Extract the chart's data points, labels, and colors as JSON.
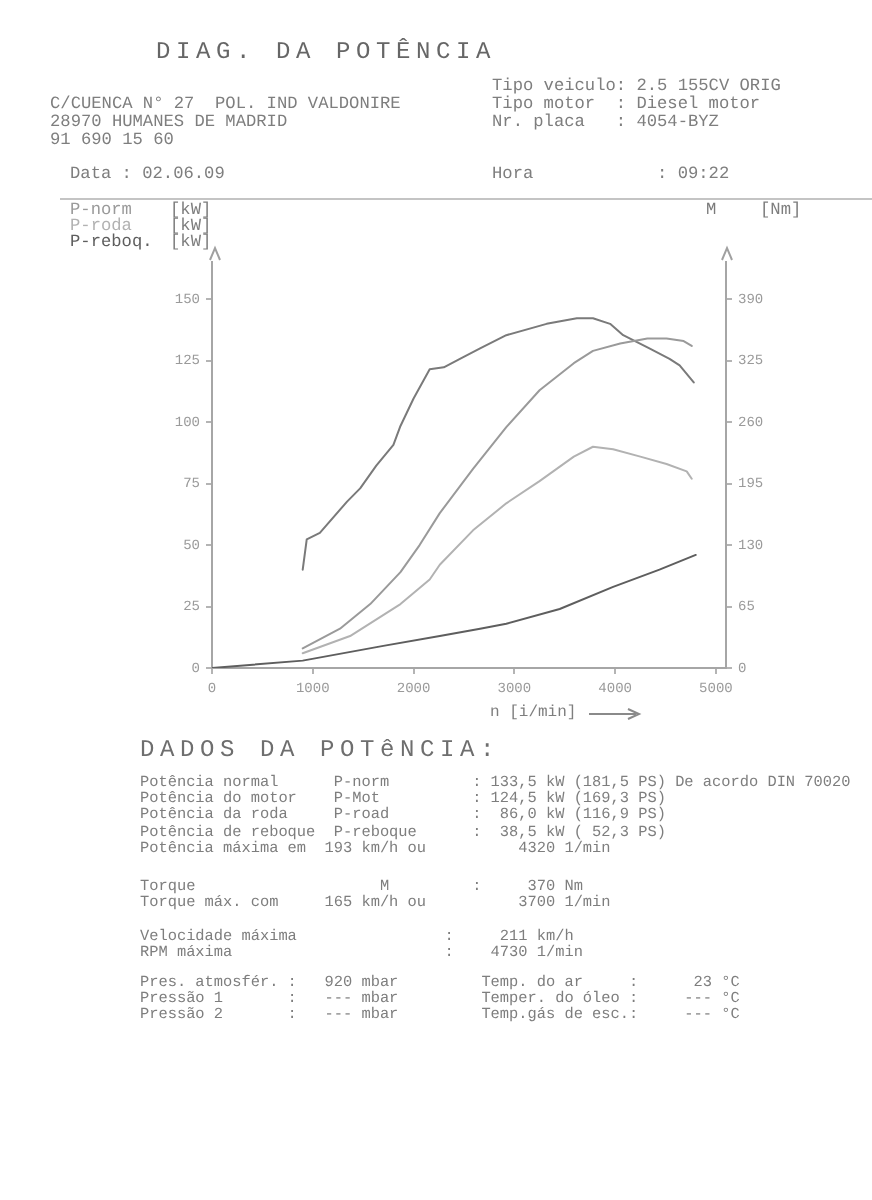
{
  "chart_data": {
    "type": "line",
    "title": "DIAG. DA POTÊNCIA",
    "xlabel": "n [i/min]",
    "ylabel": "[kW]",
    "y2label": "[Nm]",
    "series": [
      {
        "name": "P-norm",
        "color": "#9a9a9a",
        "x": [
          900,
          1270,
          1570,
          1870,
          2060,
          2260,
          2590,
          2920,
          3250,
          3590,
          3780,
          4050,
          4320,
          4510,
          4680,
          4760
        ],
        "values": [
          8,
          16,
          26,
          39,
          50,
          63,
          81,
          98,
          113,
          124,
          129,
          132,
          134,
          134,
          133,
          131
        ]
      },
      {
        "name": "P-roda",
        "color": "#b2b2b2",
        "x": [
          900,
          1370,
          1870,
          2160,
          2260,
          2590,
          2920,
          3250,
          3590,
          3780,
          3980,
          4250,
          4510,
          4710,
          4760
        ],
        "values": [
          6,
          13,
          26,
          36,
          42,
          56,
          67,
          76,
          86,
          90,
          89,
          86,
          83,
          80,
          77
        ]
      },
      {
        "name": "P-reboq.",
        "color": "#5e5e5e",
        "x": [
          0,
          900,
          1700,
          2260,
          2660,
          2920,
          3450,
          3980,
          4440,
          4800
        ],
        "values": [
          0,
          3,
          9,
          13,
          16,
          18,
          24,
          33,
          40,
          46
        ]
      },
      {
        "name": "M",
        "color": "#7a7a7a",
        "axis": "y2",
        "x": [
          900,
          940,
          1070,
          1340,
          1470,
          1630,
          1800,
          1870,
          2000,
          2160,
          2300,
          2460,
          2660,
          2920,
          3320,
          3620,
          3780,
          3950,
          4080,
          4340,
          4540,
          4640,
          4780
        ],
        "values": [
          104,
          136,
          143,
          176,
          190,
          214,
          236,
          256,
          285,
          316,
          318,
          327,
          338,
          352,
          364,
          370,
          370,
          364,
          352,
          338,
          327,
          320,
          302
        ]
      }
    ],
    "xlim": [
      0,
      5100
    ],
    "xticks": [
      0,
      1000,
      2000,
      3000,
      4000,
      5000
    ],
    "ylim": [
      0,
      165
    ],
    "yticks": [
      0,
      25,
      50,
      75,
      100,
      125,
      150
    ],
    "y2lim": [
      0,
      429
    ],
    "y2ticks": [
      0,
      65,
      130,
      195,
      260,
      325,
      390
    ],
    "legend": "top",
    "marker": "none",
    "annotations": [
      "C/CUENCA N° 27  POL. IND VALDONIRE",
      "28970 HUMANES DE MADRID",
      "91 690 15 60",
      "Tipo veiculo: 2.5 155CV ORIG",
      "Tipo motor  : Diesel motor",
      "Nr. placa   : 4054-BYZ",
      "Data : 02.06.09",
      "Hora            : 09:22",
      "DADOS DA POTêNCIA:",
      "Potência normal      P-norm         : 133,5 kW (181,5 PS) De acordo DIN 70020",
      "Potência do motor    P-Mot          : 124,5 kW (169,3 PS)",
      "Potência da roda     P-road         :  86,0 kW (116,9 PS)",
      "Potência de reboque  P-reboque      :  38,5 kW ( 52,3 PS)",
      "Potência máxima em  193 km/h ou          4320 1/min",
      "Torque                    M         :     370 Nm",
      "Torque máx. com     165 km/h ou          3700 1/min",
      "Velocidade máxima                :     211 km/h",
      "RPM máxima                       :    4730 1/min",
      "Pres. atmosfér. :   920 mbar         Temp. do ar     :      23 °C",
      "Pressão 1       :   --- mbar         Temper. do óleo :     --- °C",
      "Pressão 2       :   --- mbar         Temp.gás de esc.:     --- °C"
    ]
  }
}
